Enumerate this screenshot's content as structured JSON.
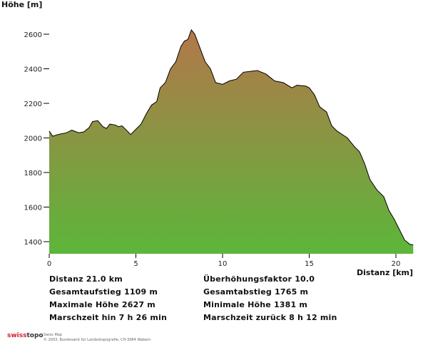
{
  "chart_data": {
    "type": "area",
    "ylabel": "Höhe [m]",
    "xlabel": "Distanz [km]",
    "xlim": [
      0,
      21
    ],
    "ylim": [
      1330,
      2700
    ],
    "xticks": [
      0,
      5,
      10,
      15,
      20
    ],
    "yticks": [
      1400,
      1600,
      1800,
      2000,
      2200,
      2400,
      2600
    ],
    "grid": false,
    "fill_colors": {
      "high": "#b3774a",
      "low": "#5cb63a"
    },
    "x": [
      0,
      0.2,
      0.5,
      1,
      1.3,
      1.7,
      2,
      2.3,
      2.5,
      2.8,
      3.1,
      3.3,
      3.5,
      3.8,
      4.0,
      4.2,
      4.5,
      4.7,
      5.0,
      5.3,
      5.6,
      5.9,
      6.2,
      6.4,
      6.7,
      7.0,
      7.3,
      7.6,
      7.8,
      8.0,
      8.2,
      8.4,
      8.7,
      9.0,
      9.3,
      9.6,
      10.0,
      10.4,
      10.8,
      11.2,
      11.6,
      12.0,
      12.5,
      13.0,
      13.5,
      14.0,
      14.3,
      14.8,
      15.0,
      15.3,
      15.6,
      16.0,
      16.3,
      16.6,
      16.9,
      17.2,
      17.6,
      17.9,
      18.2,
      18.5,
      18.9,
      19.3,
      19.6,
      19.9,
      20.2,
      20.5,
      20.8,
      21.0
    ],
    "y": [
      2040,
      2010,
      2020,
      2030,
      2045,
      2030,
      2035,
      2060,
      2095,
      2100,
      2065,
      2055,
      2080,
      2075,
      2065,
      2070,
      2040,
      2020,
      2050,
      2080,
      2140,
      2190,
      2210,
      2290,
      2320,
      2400,
      2440,
      2530,
      2560,
      2570,
      2625,
      2600,
      2520,
      2440,
      2400,
      2320,
      2310,
      2330,
      2340,
      2380,
      2385,
      2390,
      2370,
      2330,
      2320,
      2290,
      2305,
      2300,
      2290,
      2250,
      2180,
      2150,
      2070,
      2040,
      2020,
      2000,
      1950,
      1920,
      1850,
      1760,
      1700,
      1660,
      1580,
      1530,
      1470,
      1410,
      1385,
      1381
    ]
  },
  "stats": {
    "distance": "Distanz 21.0 km",
    "exaggeration": "Überhöhungsfaktor 10.0",
    "ascent": "Gesamtaufstieg  1109 m",
    "descent": "Gesamtabstieg  1765 m",
    "max_height": "Maximale Höhe  2627 m",
    "min_height": "Minimale Höhe  1381 m",
    "time_forward": "Marschzeit hin  7 h 26 min",
    "time_back": "Marschzeit zurück  8 h 12 min"
  },
  "footer": {
    "logo_a": "swiss",
    "logo_b": "topo",
    "product": "Swiss Map",
    "copyright": "© 2003, Bundesamt für Landestopografie, CH-3084 Wabern"
  }
}
